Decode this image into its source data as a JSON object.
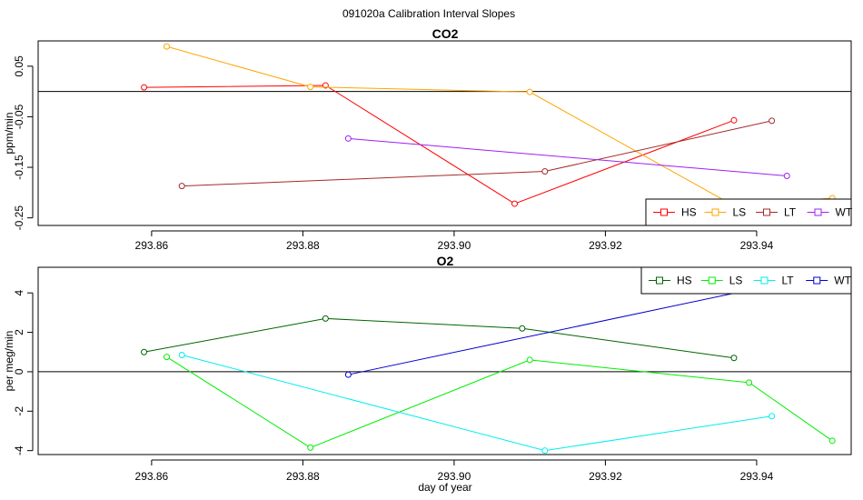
{
  "figure": {
    "title": "091020a   Calibration Interval Slopes",
    "xlabel": "day of year"
  },
  "chart_data": [
    {
      "type": "line",
      "title": "CO2",
      "xlabel": "",
      "ylabel": "ppm/min",
      "xlim": [
        293.845,
        293.9525
      ],
      "ylim": [
        -0.265,
        0.1
      ],
      "xticks": [
        293.86,
        293.88,
        293.9,
        293.92,
        293.94
      ],
      "xtick_labels": [
        "293.86",
        "293.88",
        "293.90",
        "293.92",
        "293.94"
      ],
      "yticks": [
        0.05,
        -0.05,
        -0.15,
        -0.25
      ],
      "ytick_labels": [
        "0.05",
        "-0.05",
        "-0.15",
        "-0.25"
      ],
      "hline": 0,
      "legend_position": "bottom-right",
      "series": [
        {
          "name": "HS",
          "color": "#ff0000",
          "x": [
            293.859,
            293.883,
            293.908,
            293.937
          ],
          "y": [
            0.008,
            0.012,
            -0.222,
            -0.057
          ]
        },
        {
          "name": "LS",
          "color": "#ffa500",
          "x": [
            293.862,
            293.881,
            293.91,
            293.937,
            293.95
          ],
          "y": [
            0.089,
            0.009,
            -0.001,
            -0.226,
            -0.211
          ]
        },
        {
          "name": "LT",
          "color": "#a52a2a",
          "x": [
            293.864,
            293.912,
            293.942
          ],
          "y": [
            -0.187,
            -0.158,
            -0.058
          ]
        },
        {
          "name": "WT",
          "color": "#a020f0",
          "x": [
            293.886,
            293.944
          ],
          "y": [
            -0.093,
            -0.167
          ]
        }
      ]
    },
    {
      "type": "line",
      "title": "O2",
      "xlabel": "day of year",
      "ylabel": "per meg/min",
      "xlim": [
        293.845,
        293.9525
      ],
      "ylim": [
        -4.2,
        5.3
      ],
      "xticks": [
        293.86,
        293.88,
        293.9,
        293.92,
        293.94
      ],
      "xtick_labels": [
        "293.86",
        "293.88",
        "293.90",
        "293.92",
        "293.94"
      ],
      "yticks": [
        4,
        2,
        0,
        -2,
        -4
      ],
      "ytick_labels": [
        "4",
        "2",
        "0",
        "-2",
        "-4"
      ],
      "hline": 0,
      "legend_position": "top-right",
      "series": [
        {
          "name": "HS",
          "color": "#006400",
          "x": [
            293.859,
            293.883,
            293.909,
            293.937
          ],
          "y": [
            1.0,
            2.7,
            2.2,
            0.7
          ]
        },
        {
          "name": "LS",
          "color": "#00ee00",
          "x": [
            293.862,
            293.881,
            293.91,
            293.939,
            293.95
          ],
          "y": [
            0.75,
            -3.85,
            0.6,
            -0.55,
            -3.5
          ]
        },
        {
          "name": "LT",
          "color": "#00eeee",
          "x": [
            293.864,
            293.912,
            293.942
          ],
          "y": [
            0.85,
            -4.0,
            -2.25
          ]
        },
        {
          "name": "WT",
          "color": "#0000cd",
          "x": [
            293.886,
            293.944
          ],
          "y": [
            -0.15,
            4.55
          ]
        }
      ]
    }
  ]
}
